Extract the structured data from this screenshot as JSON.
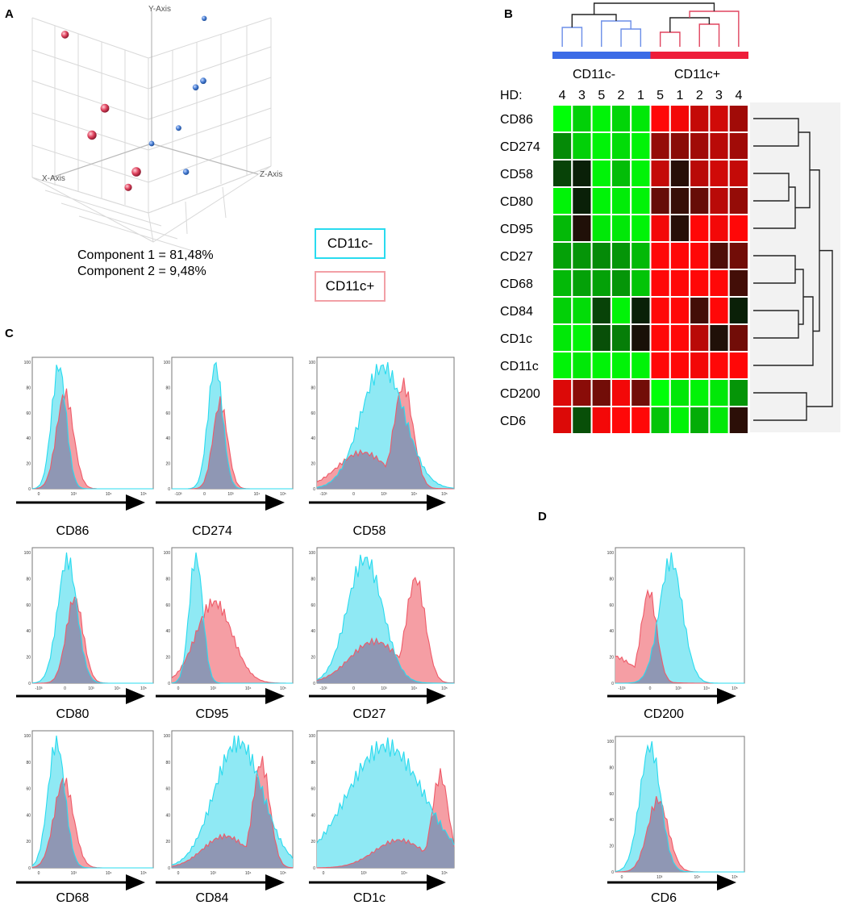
{
  "colors": {
    "cd11c_neg": "#29dbef",
    "cd11c_neg_fill": "#8fe9f4",
    "cd11c_pos": "#ef5a68",
    "cd11c_pos_fill": "#f59ea4",
    "overlap_fill": "#8f97b4",
    "blue_point": "#4a7fd4",
    "red_point": "#e0445f",
    "bar_blue": "#3b6be6",
    "bar_red": "#ee1d3a"
  },
  "panels": {
    "a": "A",
    "b": "B",
    "c": "C",
    "d": "D"
  },
  "pca": {
    "axes": {
      "x": "X-Axis",
      "y": "Y-Axis",
      "z": "Z-Axis"
    },
    "component1": "Component 1 = 81,48%",
    "component2": "Component 2 = 9,48%",
    "legend": {
      "neg": "CD11c-",
      "pos": "CD11c+"
    }
  },
  "chart_data": [
    {
      "type": "scatter",
      "title": "PCA",
      "series": [
        {
          "name": "CD11c-",
          "points": [
            [
              0.66,
              0.92,
              -0.2
            ],
            [
              0.3,
              0.56,
              0.4
            ],
            [
              0.28,
              0.49,
              0.3
            ],
            [
              0.22,
              0.13,
              0.1
            ],
            [
              0.18,
              -0.18,
              0.3
            ],
            [
              0.0,
              0.0,
              0.0
            ]
          ]
        },
        {
          "name": "CD11c+",
          "points": [
            [
              -0.72,
              0.86,
              -0.3
            ],
            [
              -0.6,
              0.36,
              0.2
            ],
            [
              -0.85,
              0.2,
              0.4
            ],
            [
              -0.45,
              -0.1,
              0.5
            ],
            [
              0.05,
              -0.45,
              -0.5
            ]
          ]
        }
      ]
    },
    {
      "type": "heatmap",
      "title": "Marker expression",
      "group_labels": [
        "CD11c-",
        "CD11c+"
      ],
      "hd_label": "HD:",
      "columns": [
        "4",
        "3",
        "5",
        "2",
        "1",
        "5",
        "1",
        "2",
        "3",
        "4"
      ],
      "rows": [
        "CD86",
        "CD274",
        "CD58",
        "CD80",
        "CD95",
        "CD27",
        "CD68",
        "CD84",
        "CD1c",
        "CD11c",
        "CD200",
        "CD6"
      ],
      "values": [
        [
          -1.0,
          -0.8,
          -0.95,
          -0.82,
          -0.9,
          1.0,
          0.95,
          0.75,
          0.8,
          0.6
        ],
        [
          -0.5,
          -0.8,
          -0.95,
          -0.85,
          -0.95,
          0.55,
          0.5,
          0.6,
          0.7,
          0.6
        ],
        [
          -0.2,
          -0.05,
          -0.95,
          -0.72,
          -0.95,
          0.75,
          0.08,
          0.7,
          0.8,
          0.75
        ],
        [
          -0.95,
          -0.05,
          -0.95,
          -0.92,
          -0.95,
          0.35,
          0.15,
          0.35,
          0.7,
          0.55
        ],
        [
          -0.7,
          0.05,
          -0.9,
          -0.9,
          -0.95,
          0.95,
          0.08,
          1.0,
          0.95,
          1.0
        ],
        [
          -0.6,
          -0.55,
          -0.5,
          -0.55,
          -0.7,
          1.0,
          1.0,
          1.0,
          0.25,
          0.4
        ],
        [
          -0.7,
          -0.6,
          -0.6,
          -0.55,
          -0.75,
          1.0,
          1.0,
          1.0,
          1.0,
          0.2
        ],
        [
          -0.8,
          -0.85,
          -0.2,
          -0.95,
          -0.05,
          1.0,
          1.0,
          0.2,
          1.0,
          -0.05
        ],
        [
          -0.9,
          -0.95,
          -0.25,
          -0.45,
          0.02,
          1.0,
          1.0,
          0.7,
          0.05,
          0.4
        ],
        [
          -0.95,
          -0.9,
          -0.95,
          -0.95,
          -0.95,
          1.0,
          1.0,
          0.95,
          1.0,
          1.0
        ],
        [
          0.85,
          0.5,
          0.4,
          0.95,
          0.4,
          -1.0,
          -0.9,
          -0.95,
          -0.9,
          -0.55
        ],
        [
          0.85,
          -0.25,
          0.95,
          1.0,
          1.0,
          -0.75,
          -0.95,
          -0.65,
          -0.9,
          0.1
        ]
      ]
    },
    {
      "type": "area",
      "title": "Flow cytometry histograms",
      "y_ticks": [
        "0",
        "20",
        "40",
        "60",
        "80",
        "100"
      ],
      "x_range": [
        0,
        1
      ],
      "plots": [
        {
          "panel": "C",
          "marker": "CD86",
          "x_ticks": [
            "0",
            "10³",
            "10⁴",
            "10⁵"
          ],
          "neg_mode": 0.22,
          "neg_width": 0.06,
          "neg_peak": 97,
          "neg_tail": 0.0,
          "pos_mode": 0.27,
          "pos_width": 0.07,
          "pos_peak": 75,
          "pos_tail": 0.0
        },
        {
          "panel": "C",
          "marker": "CD274",
          "x_ticks": [
            "-10³",
            "0",
            "10³",
            "10⁴",
            "10⁵"
          ],
          "neg_mode": 0.36,
          "neg_width": 0.06,
          "neg_peak": 98,
          "neg_tail": 0.0,
          "pos_mode": 0.4,
          "pos_width": 0.06,
          "pos_peak": 68,
          "pos_tail": 0.0
        },
        {
          "panel": "C",
          "marker": "CD58",
          "x_ticks": [
            "-10³",
            "0",
            "10³",
            "10⁴",
            "10⁵"
          ],
          "neg_mode": 0.48,
          "neg_width": 0.16,
          "neg_peak": 96,
          "neg_tail": 0.0,
          "pos_mode": 0.63,
          "pos_width": 0.07,
          "pos_peak": 82,
          "pos_tail": 0.35
        },
        {
          "panel": "C",
          "marker": "CD80",
          "x_ticks": [
            "-10³",
            "0",
            "10³",
            "10⁴",
            "10⁵"
          ],
          "neg_mode": 0.29,
          "neg_width": 0.08,
          "neg_peak": 95,
          "neg_tail": 0.0,
          "pos_mode": 0.35,
          "pos_width": 0.07,
          "pos_peak": 65,
          "pos_tail": 0.0
        },
        {
          "panel": "C",
          "marker": "CD95",
          "x_ticks": [
            "0",
            "10³",
            "10⁴",
            "10⁵"
          ],
          "neg_mode": 0.2,
          "neg_width": 0.055,
          "neg_peak": 98,
          "neg_tail": 0.0,
          "pos_mode": 0.35,
          "pos_width": 0.15,
          "pos_peak": 62,
          "pos_tail": 0.0
        },
        {
          "panel": "C",
          "marker": "CD27",
          "x_ticks": [
            "-10³",
            "0",
            "10³",
            "10⁴",
            "10⁵"
          ],
          "neg_mode": 0.35,
          "neg_width": 0.13,
          "neg_peak": 95,
          "neg_tail": 0.0,
          "pos_mode": 0.72,
          "pos_width": 0.07,
          "pos_peak": 80,
          "pos_tail": 0.4
        },
        {
          "panel": "C",
          "marker": "CD68",
          "x_ticks": [
            "0",
            "10³",
            "10⁴",
            "10⁵"
          ],
          "neg_mode": 0.2,
          "neg_width": 0.07,
          "neg_peak": 95,
          "neg_tail": 0.0,
          "pos_mode": 0.26,
          "pos_width": 0.08,
          "pos_peak": 66,
          "pos_tail": 0.0
        },
        {
          "panel": "C",
          "marker": "CD84",
          "x_ticks": [
            "0",
            "10³",
            "10⁴",
            "10⁵"
          ],
          "neg_mode": 0.55,
          "neg_width": 0.2,
          "neg_peak": 95,
          "neg_tail": 0.0,
          "pos_mode": 0.74,
          "pos_width": 0.07,
          "pos_peak": 80,
          "pos_tail": 0.3
        },
        {
          "panel": "C",
          "marker": "CD1c",
          "x_ticks": [
            "0",
            "10³",
            "10⁴",
            "10⁵"
          ],
          "neg_mode": 0.5,
          "neg_width": 0.28,
          "neg_peak": 92,
          "neg_tail": 0.0,
          "pos_mode": 0.9,
          "pos_width": 0.06,
          "pos_peak": 70,
          "pos_tail": 0.3
        },
        {
          "panel": "D",
          "marker": "CD200",
          "x_ticks": [
            "-10³",
            "0",
            "10³",
            "10⁴",
            "10⁵"
          ],
          "neg_mode": 0.43,
          "neg_width": 0.09,
          "neg_peak": 94,
          "neg_tail": 0.0,
          "pos_mode": 0.26,
          "pos_width": 0.06,
          "pos_peak": 70,
          "pos_tail": 0.3
        },
        {
          "panel": "D",
          "marker": "CD6",
          "x_ticks": [
            "0",
            "10³",
            "10⁴",
            "10⁵"
          ],
          "neg_mode": 0.27,
          "neg_width": 0.08,
          "neg_peak": 97,
          "neg_tail": 0.0,
          "pos_mode": 0.33,
          "pos_width": 0.08,
          "pos_peak": 55,
          "pos_tail": 0.0
        }
      ]
    }
  ]
}
